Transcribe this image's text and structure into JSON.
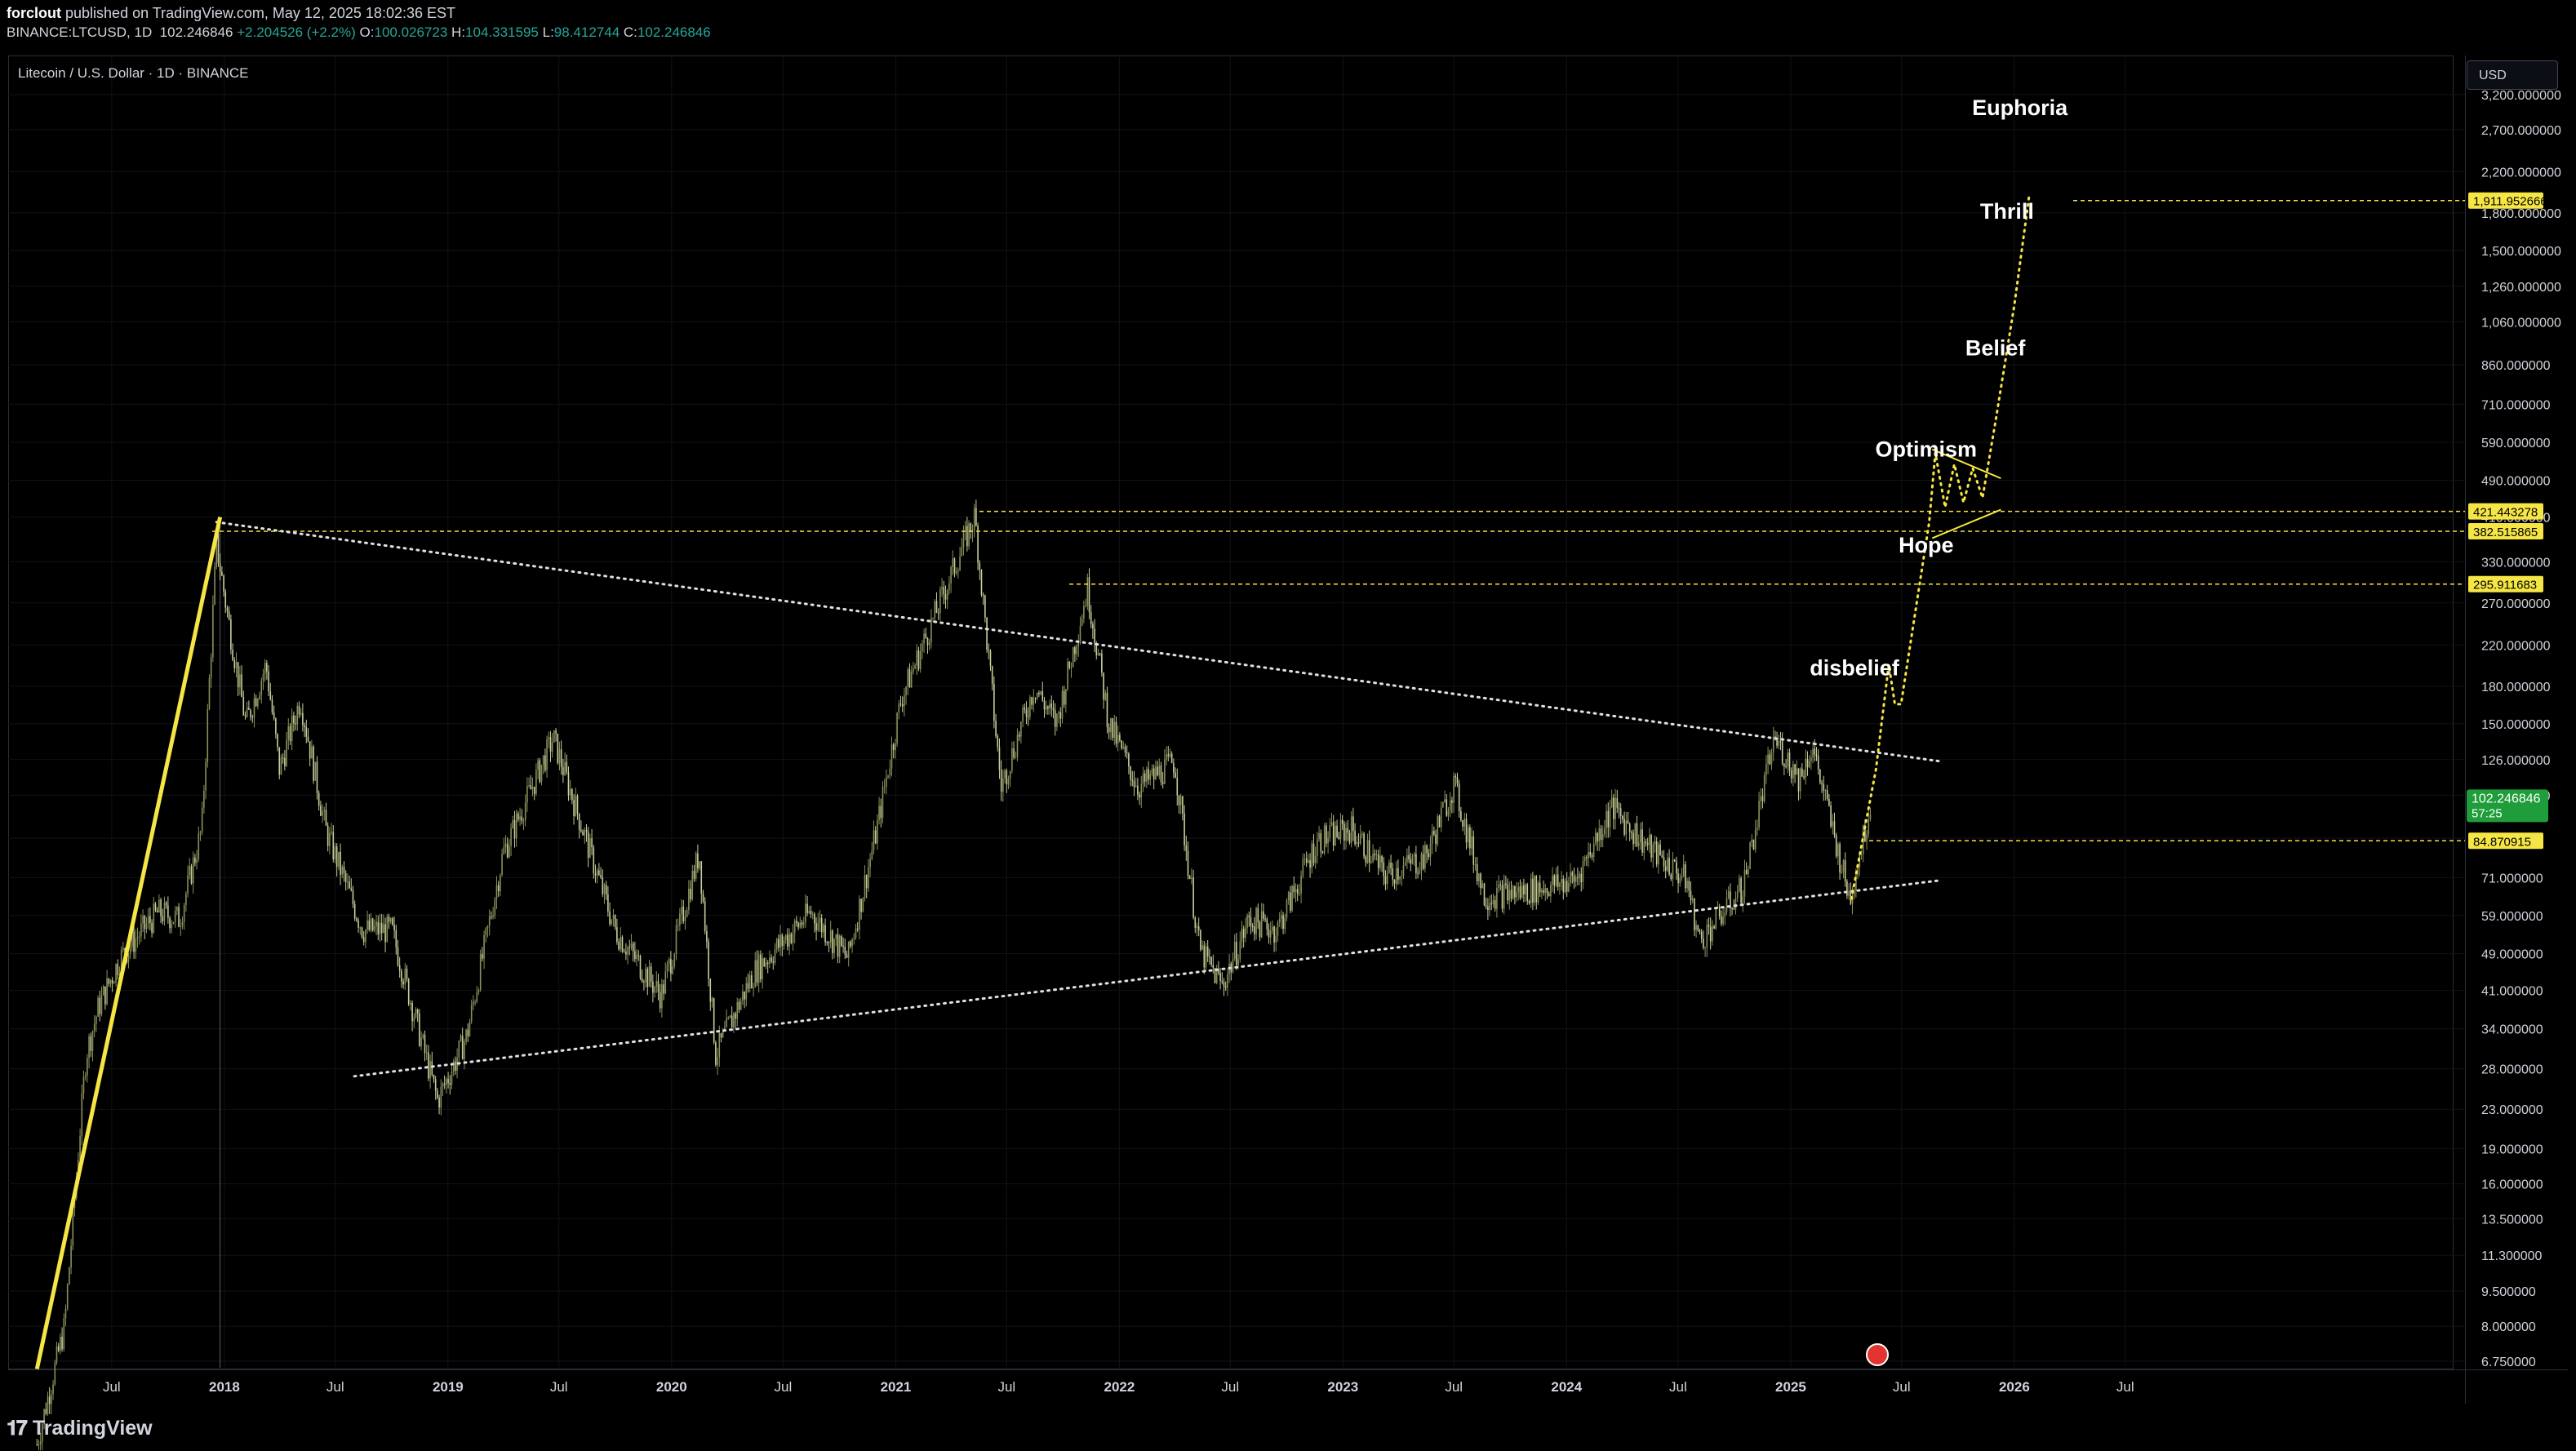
{
  "header": {
    "publisher": "forclout",
    "published_text": "published on TradingView.com, May 12, 2025 18:02:36 EST",
    "symbol_full": "BINANCE:LTCUSD, 1D",
    "last": "102.246846",
    "change": "+2.204526 (+2.2%)",
    "open_label": "O:",
    "open": "100.026723",
    "high_label": "H:",
    "high": "104.331595",
    "low_label": "L:",
    "low": "98.412744",
    "close_label": "C:",
    "close": "102.246846"
  },
  "pane": {
    "symbol_title": "Litecoin / U.S. Dollar · 1D · BINANCE",
    "currency_button": "USD"
  },
  "footer": {
    "brand": "TradingView"
  },
  "colors": {
    "background": "#000000",
    "candle_up": "#8a8f5a",
    "candle_down": "#c8cd9a",
    "accent_yellow": "#f5e645",
    "price_tag_green": "#1f9d3a",
    "text_white": "#ffffff"
  },
  "chart_data": {
    "type": "candlestick",
    "title": "Litecoin / U.S. Dollar · 1D · BINANCE",
    "y_scale": "log",
    "ylim": [
      6.75,
      3200
    ],
    "y_ticks": [
      "6.750000",
      "8.000000",
      "9.500000",
      "11.300000",
      "13.500000",
      "16.000000",
      "19.000000",
      "23.000000",
      "28.000000",
      "34.000000",
      "41.000000",
      "49.000000",
      "59.000000",
      "71.000000",
      "86.000000",
      "106.000000",
      "126.000000",
      "150.000000",
      "180.000000",
      "220.000000",
      "270.000000",
      "330.000000",
      "410.000000",
      "490.000000",
      "590.000000",
      "710.000000",
      "860.000000",
      "1,060.000000",
      "1,260.000000",
      "1,500.000000",
      "1,800.000000",
      "2,200.000000",
      "2,700.000000",
      "3,200.000000"
    ],
    "x_ticks": [
      "Jul",
      "2018",
      "Jul",
      "2019",
      "Jul",
      "2020",
      "Jul",
      "2021",
      "Jul",
      "2022",
      "Jul",
      "2023",
      "Jul",
      "2024",
      "Jul",
      "2025",
      "Jul",
      "2026",
      "Jul"
    ],
    "price_path": [
      {
        "date": "2017-03-01",
        "value": 4.5
      },
      {
        "date": "2017-04-15",
        "value": 8
      },
      {
        "date": "2017-05-20",
        "value": 30
      },
      {
        "date": "2017-06-10",
        "value": 38
      },
      {
        "date": "2017-07-15",
        "value": 48
      },
      {
        "date": "2017-08-20",
        "value": 55
      },
      {
        "date": "2017-09-15",
        "value": 60
      },
      {
        "date": "2017-10-20",
        "value": 58
      },
      {
        "date": "2017-11-25",
        "value": 90
      },
      {
        "date": "2017-12-19",
        "value": 360
      },
      {
        "date": "2018-01-05",
        "value": 260
      },
      {
        "date": "2018-02-05",
        "value": 150
      },
      {
        "date": "2018-03-10",
        "value": 200
      },
      {
        "date": "2018-04-01",
        "value": 120
      },
      {
        "date": "2018-05-05",
        "value": 170
      },
      {
        "date": "2018-06-15",
        "value": 90
      },
      {
        "date": "2018-08-15",
        "value": 55
      },
      {
        "date": "2018-10-01",
        "value": 55
      },
      {
        "date": "2018-12-15",
        "value": 24
      },
      {
        "date": "2019-02-01",
        "value": 33
      },
      {
        "date": "2019-04-01",
        "value": 80
      },
      {
        "date": "2019-06-22",
        "value": 140
      },
      {
        "date": "2019-08-15",
        "value": 85
      },
      {
        "date": "2019-10-01",
        "value": 55
      },
      {
        "date": "2019-12-15",
        "value": 40
      },
      {
        "date": "2020-02-15",
        "value": 80
      },
      {
        "date": "2020-03-13",
        "value": 30
      },
      {
        "date": "2020-05-15",
        "value": 45
      },
      {
        "date": "2020-08-15",
        "value": 60
      },
      {
        "date": "2020-10-15",
        "value": 48
      },
      {
        "date": "2020-12-01",
        "value": 90
      },
      {
        "date": "2021-01-10",
        "value": 170
      },
      {
        "date": "2021-02-20",
        "value": 230
      },
      {
        "date": "2021-05-10",
        "value": 412
      },
      {
        "date": "2021-06-22",
        "value": 110
      },
      {
        "date": "2021-08-15",
        "value": 180
      },
      {
        "date": "2021-09-20",
        "value": 150
      },
      {
        "date": "2021-11-10",
        "value": 290
      },
      {
        "date": "2021-12-15",
        "value": 150
      },
      {
        "date": "2022-02-01",
        "value": 110
      },
      {
        "date": "2022-04-01",
        "value": 125
      },
      {
        "date": "2022-05-12",
        "value": 50
      },
      {
        "date": "2022-06-18",
        "value": 42
      },
      {
        "date": "2022-08-01",
        "value": 58
      },
      {
        "date": "2022-09-15",
        "value": 55
      },
      {
        "date": "2022-11-20",
        "value": 85
      },
      {
        "date": "2023-01-15",
        "value": 90
      },
      {
        "date": "2023-03-10",
        "value": 72
      },
      {
        "date": "2023-05-15",
        "value": 78
      },
      {
        "date": "2023-07-01",
        "value": 112
      },
      {
        "date": "2023-08-20",
        "value": 65
      },
      {
        "date": "2023-10-15",
        "value": 66
      },
      {
        "date": "2024-01-15",
        "value": 70
      },
      {
        "date": "2024-03-15",
        "value": 100
      },
      {
        "date": "2024-05-15",
        "value": 82
      },
      {
        "date": "2024-07-15",
        "value": 70
      },
      {
        "date": "2024-08-05",
        "value": 52
      },
      {
        "date": "2024-10-15",
        "value": 68
      },
      {
        "date": "2024-12-05",
        "value": 140
      },
      {
        "date": "2025-01-15",
        "value": 115
      },
      {
        "date": "2025-02-05",
        "value": 135
      },
      {
        "date": "2025-03-10",
        "value": 90
      },
      {
        "date": "2025-04-07",
        "value": 64
      },
      {
        "date": "2025-05-12",
        "value": 102.25
      }
    ],
    "horizontal_levels": [
      {
        "value": 1911.952666,
        "label": "1,911.952666",
        "style": "yellow-tag"
      },
      {
        "value": 421.443278,
        "label": "421.443278",
        "style": "yellow-tag"
      },
      {
        "value": 382.515865,
        "label": "382.515865",
        "style": "yellow-tag"
      },
      {
        "value": 295.911683,
        "label": "295.911683",
        "style": "yellow-tag"
      },
      {
        "value": 84.870915,
        "label": "84.870915",
        "style": "yellow-tag"
      }
    ],
    "current_price": {
      "value": 102.246846,
      "label": "102.246846",
      "countdown": "57:25"
    },
    "trendlines": [
      {
        "name": "upper",
        "from": {
          "date": "2017-12-19",
          "value": 400
        },
        "to": {
          "date": "2025-09-01",
          "value": 125
        }
      },
      {
        "name": "lower",
        "from": {
          "date": "2018-08-01",
          "value": 27
        },
        "to": {
          "date": "2025-09-01",
          "value": 70
        }
      },
      {
        "name": "impulse",
        "from": {
          "date": "2017-03-01",
          "value": 6.5
        },
        "to": {
          "date": "2017-12-25",
          "value": 410
        }
      }
    ],
    "projection_path": [
      {
        "date": "2025-04-10",
        "value": 64
      },
      {
        "date": "2025-05-20",
        "value": 120
      },
      {
        "date": "2025-06-10",
        "value": 200
      },
      {
        "date": "2025-06-20",
        "value": 165
      },
      {
        "date": "2025-06-30",
        "value": 165
      },
      {
        "date": "2025-08-15",
        "value": 400
      },
      {
        "date": "2025-08-25",
        "value": 560
      },
      {
        "date": "2025-09-10",
        "value": 430
      },
      {
        "date": "2025-09-25",
        "value": 530
      },
      {
        "date": "2025-10-10",
        "value": 440
      },
      {
        "date": "2025-10-25",
        "value": 520
      },
      {
        "date": "2025-11-10",
        "value": 450
      },
      {
        "date": "2025-12-01",
        "value": 650
      },
      {
        "date": "2026-01-01",
        "value": 1150
      },
      {
        "date": "2026-01-25",
        "value": 1950
      }
    ],
    "annotations": [
      {
        "text": "Euphoria",
        "date": "2026-01-10",
        "value": 2900
      },
      {
        "text": "Thrill",
        "date": "2025-12-20",
        "value": 1750
      },
      {
        "text": "Belief",
        "date": "2025-12-01",
        "value": 900
      },
      {
        "text": "Optimism",
        "date": "2025-08-10",
        "value": 550
      },
      {
        "text": "Hope",
        "date": "2025-08-10",
        "value": 345
      },
      {
        "text": "disbelief",
        "date": "2025-04-15",
        "value": 190
      }
    ]
  }
}
